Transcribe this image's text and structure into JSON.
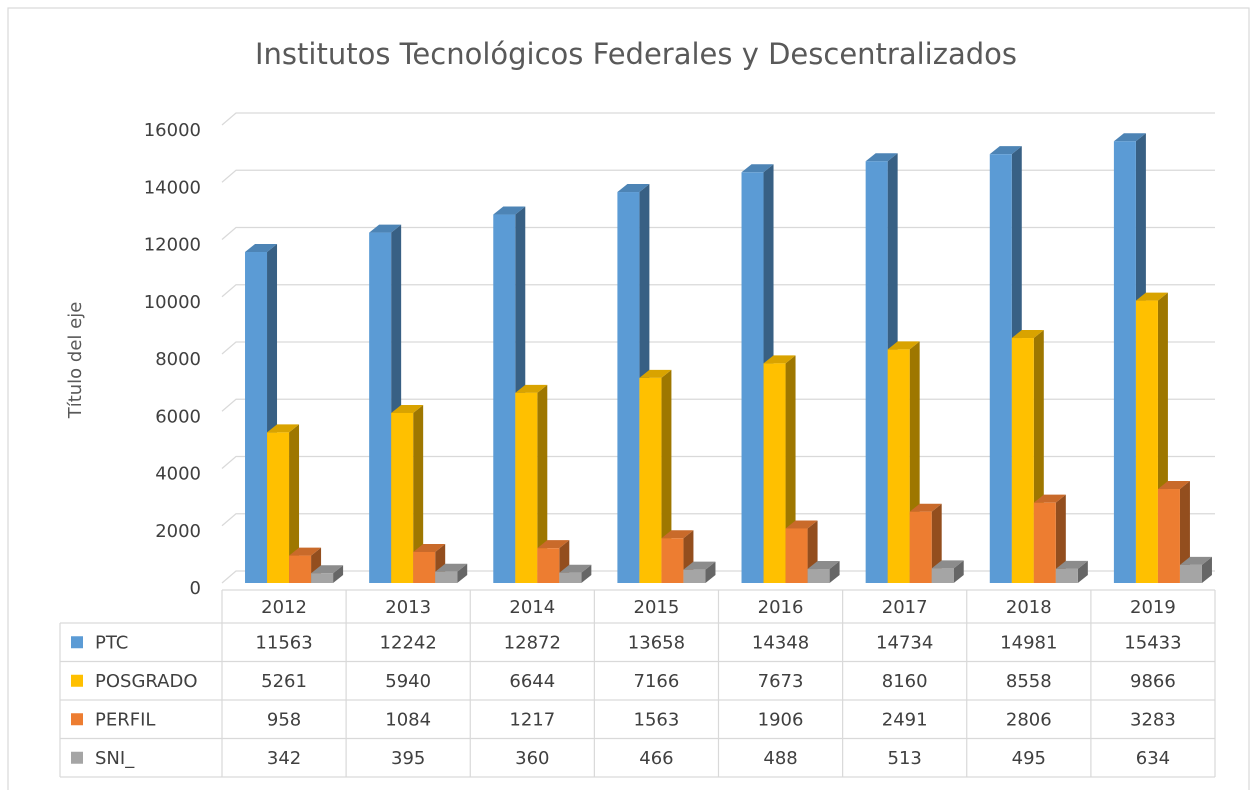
{
  "chart_data": {
    "type": "bar3d",
    "title": "Institutos Tecnológicos Federales y Descentralizados",
    "y_label": "Título del eje",
    "categories": [
      "2012",
      "2013",
      "2014",
      "2015",
      "2016",
      "2017",
      "2018",
      "2019"
    ],
    "series": [
      {
        "name": "PTC",
        "color": "#5b9bd5",
        "values": [
          11563,
          12242,
          12872,
          13658,
          14348,
          14734,
          14981,
          15433
        ]
      },
      {
        "name": "POSGRADO",
        "color": "#ffc000",
        "values": [
          5261,
          5940,
          6644,
          7166,
          7673,
          8160,
          8558,
          9866
        ]
      },
      {
        "name": "PERFIL",
        "color": "#ed7d31",
        "values": [
          958,
          1084,
          1217,
          1563,
          1906,
          2491,
          2806,
          3283
        ]
      },
      {
        "name": "SNI_",
        "color": "#a5a5a5",
        "values": [
          342,
          395,
          360,
          466,
          488,
          513,
          495,
          634
        ]
      }
    ],
    "ylim": [
      0,
      16000
    ],
    "yticks": [
      0,
      2000,
      4000,
      6000,
      8000,
      10000,
      12000,
      14000,
      16000
    ],
    "grid": true,
    "data_table": true
  }
}
